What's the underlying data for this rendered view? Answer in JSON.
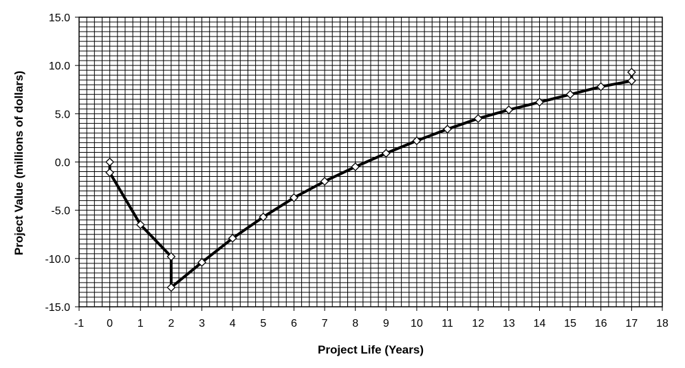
{
  "chart_data": {
    "type": "line",
    "title": "",
    "xlabel": "Project Life (Years)",
    "ylabel": "Project Value (millions of dollars)",
    "xlim": [
      -1,
      18
    ],
    "ylim": [
      -15,
      15
    ],
    "x_ticks": [
      "-1",
      "0",
      "1",
      "2",
      "3",
      "4",
      "5",
      "6",
      "7",
      "8",
      "9",
      "10",
      "11",
      "12",
      "13",
      "14",
      "15",
      "16",
      "17",
      "18"
    ],
    "y_ticks": [
      "15.0",
      "10.0",
      "5.0",
      "0.0",
      "-5.0",
      "-10.0",
      "-15.0"
    ],
    "grid": true,
    "legend": "none",
    "colors": {
      "line": "#000000",
      "marker_fill": "#ffffff",
      "marker_stroke": "#000000",
      "grid": "#000000"
    },
    "series": [
      {
        "points": [
          [
            0,
            0.0
          ],
          [
            0,
            -1.1
          ],
          [
            1,
            -6.5
          ],
          [
            2,
            -9.8
          ],
          [
            2,
            -13.0
          ],
          [
            3,
            -10.4
          ],
          [
            4,
            -7.9
          ],
          [
            5,
            -5.7
          ],
          [
            6,
            -3.7
          ],
          [
            7,
            -2.0
          ],
          [
            8,
            -0.5
          ],
          [
            9,
            0.9
          ],
          [
            10,
            2.2
          ],
          [
            11,
            3.4
          ],
          [
            12,
            4.5
          ],
          [
            13,
            5.4
          ],
          [
            14,
            6.2
          ],
          [
            15,
            7.0
          ],
          [
            16,
            7.8
          ],
          [
            17,
            8.4
          ],
          [
            17,
            9.3
          ]
        ]
      }
    ]
  }
}
